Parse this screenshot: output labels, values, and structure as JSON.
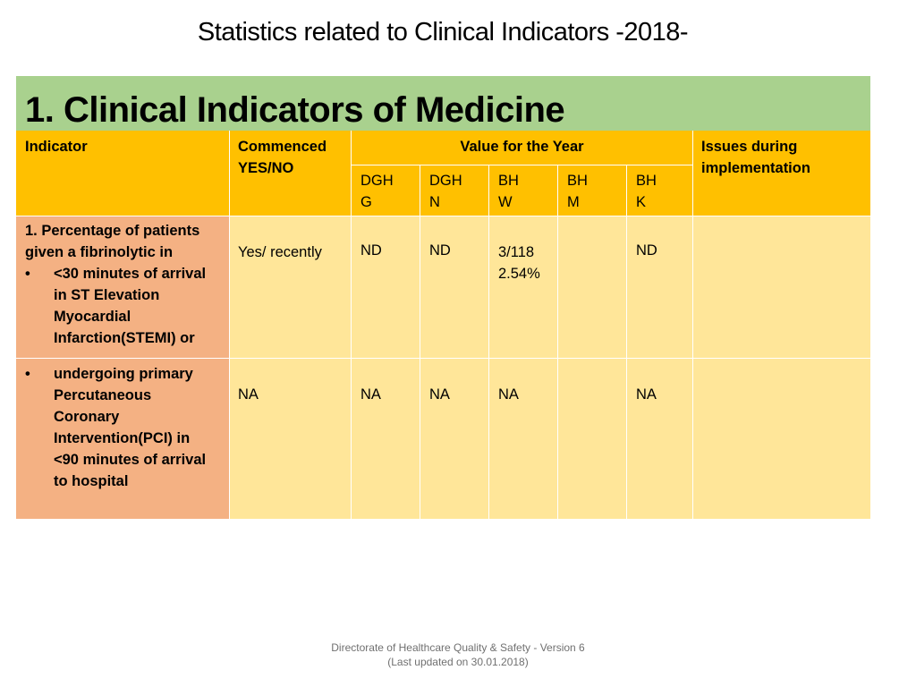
{
  "page": {
    "title": "Statistics related to Clinical Indicators -2018-"
  },
  "section": {
    "title": "1. Clinical Indicators of Medicine"
  },
  "table": {
    "headers": {
      "indicator": "Indicator",
      "commenced_line1": "Commenced",
      "commenced_line2": "YES/NO",
      "value_for_year": "Value for the Year",
      "issues_line1": "Issues during",
      "issues_line2": "implementation"
    },
    "hospitals": [
      {
        "line1": "DGH",
        "line2": "G"
      },
      {
        "line1": "DGH",
        "line2": "N"
      },
      {
        "line1": "BH",
        "line2": "W"
      },
      {
        "line1": "BH",
        "line2": "M"
      },
      {
        "line1": "BH",
        "line2": "K"
      }
    ],
    "rows": [
      {
        "indicator_intro_line1": "1.  Percentage of patients",
        "indicator_intro_line2": "given a fibrinolytic in",
        "bullet_lines": [
          "<30 minutes of arrival",
          "in ST Elevation",
          "Myocardial",
          "Infarction(STEMI) or"
        ],
        "commenced": "Yes/ recently",
        "values": [
          {
            "line1": "ND",
            "line2": ""
          },
          {
            "line1": "ND",
            "line2": ""
          },
          {
            "line1": "3/118",
            "line2": "2.54%"
          },
          {
            "line1": "",
            "line2": ""
          },
          {
            "line1": "ND",
            "line2": ""
          }
        ],
        "issues": ""
      },
      {
        "bullet_lines": [
          "undergoing primary",
          "Percutaneous",
          "Coronary",
          "Intervention(PCI) in",
          "<90 minutes of arrival",
          "to hospital"
        ],
        "commenced": "NA",
        "values": [
          {
            "line1": "NA",
            "line2": ""
          },
          {
            "line1": "NA",
            "line2": ""
          },
          {
            "line1": "NA",
            "line2": ""
          },
          {
            "line1": "",
            "line2": ""
          },
          {
            "line1": "NA",
            "line2": ""
          }
        ],
        "issues": ""
      }
    ],
    "bullet_glyph": "•"
  },
  "footer": {
    "line1": "Directorate of Healthcare Quality & Safety - Version 6",
    "line2": "(Last updated on 30.01.2018)"
  },
  "colors": {
    "banner_green": "#a9d18e",
    "header_gold": "#ffc000",
    "indicator_salmon": "#f4b183",
    "body_pale": "#ffe699",
    "grid_line": "#ffffff"
  }
}
